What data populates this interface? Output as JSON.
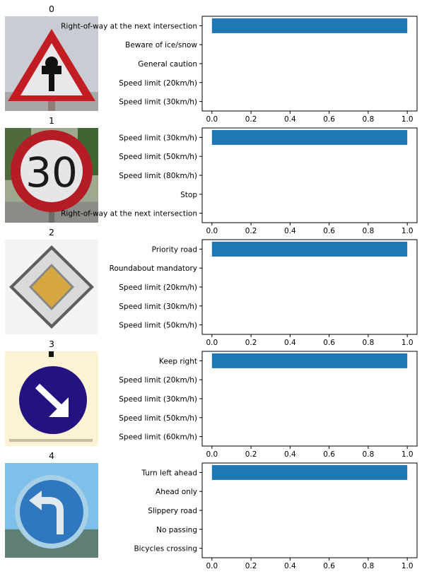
{
  "colors": {
    "bar": "#1f77b4",
    "axis": "#000000"
  },
  "panels": [
    {
      "title": "0",
      "sign": "right-of-way-warning-sign",
      "chart_data": {
        "type": "bar",
        "orientation": "horizontal",
        "categories": [
          "Speed limit (30km/h)",
          "Speed limit (20km/h)",
          "General caution",
          "Beware of ice/snow",
          "Right-of-way at the next intersection"
        ],
        "values": [
          0,
          0,
          0,
          0,
          1.0
        ],
        "xlim": [
          0,
          1.0
        ],
        "xticks": [
          "0.0",
          "0.2",
          "0.4",
          "0.6",
          "0.8",
          "1.0"
        ]
      }
    },
    {
      "title": "1",
      "sign": "speed-limit-30-sign",
      "sign_text": "30",
      "chart_data": {
        "type": "bar",
        "orientation": "horizontal",
        "categories": [
          "Right-of-way at the next intersection",
          "Stop",
          "Speed limit (80km/h)",
          "Speed limit (50km/h)",
          "Speed limit (30km/h)"
        ],
        "values": [
          0,
          0,
          0,
          0,
          1.0
        ],
        "xlim": [
          0,
          1.0
        ],
        "xticks": [
          "0.0",
          "0.2",
          "0.4",
          "0.6",
          "0.8",
          "1.0"
        ]
      }
    },
    {
      "title": "2",
      "sign": "priority-road-sign",
      "chart_data": {
        "type": "bar",
        "orientation": "horizontal",
        "categories": [
          "Speed limit (50km/h)",
          "Speed limit (30km/h)",
          "Speed limit (20km/h)",
          "Roundabout mandatory",
          "Priority road"
        ],
        "values": [
          0,
          0,
          0,
          0,
          1.0
        ],
        "xlim": [
          0,
          1.0
        ],
        "xticks": [
          "0.0",
          "0.2",
          "0.4",
          "0.6",
          "0.8",
          "1.0"
        ]
      }
    },
    {
      "title": "3",
      "sign": "keep-right-sign",
      "chart_data": {
        "type": "bar",
        "orientation": "horizontal",
        "categories": [
          "Speed limit (60km/h)",
          "Speed limit (50km/h)",
          "Speed limit (30km/h)",
          "Speed limit (20km/h)",
          "Keep right"
        ],
        "values": [
          0,
          0,
          0,
          0,
          1.0
        ],
        "xlim": [
          0,
          1.0
        ],
        "xticks": [
          "0.0",
          "0.2",
          "0.4",
          "0.6",
          "0.8",
          "1.0"
        ]
      }
    },
    {
      "title": "4",
      "sign": "turn-left-ahead-sign",
      "chart_data": {
        "type": "bar",
        "orientation": "horizontal",
        "categories": [
          "Bicycles crossing",
          "No passing",
          "Slippery road",
          "Ahead only",
          "Turn left ahead"
        ],
        "values": [
          0,
          0,
          0,
          0,
          1.0
        ],
        "xlim": [
          0,
          1.0
        ],
        "xticks": [
          "0.0",
          "0.2",
          "0.4",
          "0.6",
          "0.8",
          "1.0"
        ]
      }
    }
  ]
}
